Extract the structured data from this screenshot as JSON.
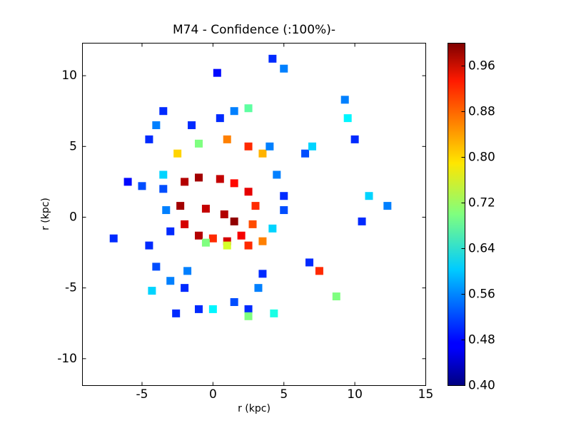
{
  "chart_data": {
    "type": "scatter",
    "title": "M74 - Confidence (:100%)-",
    "xlabel": "r (kpc)",
    "ylabel": "r (kpc)",
    "colormap": "jet",
    "x": [
      -2,
      -1,
      0.5,
      1.5,
      2.5,
      3,
      2.8,
      2,
      1,
      0,
      -1,
      -2,
      -2.3,
      0.8,
      1.5,
      -0.5,
      -3.5,
      -2.5,
      -1,
      1,
      2.5,
      3.5,
      4.5,
      5,
      5,
      4.2,
      3.5,
      2.5,
      1,
      -0.5,
      -3,
      -3.3,
      -3.5,
      -7,
      -6,
      -5,
      -4.5,
      -4,
      -3.5,
      -1.5,
      0.5,
      1.5,
      2.5,
      4,
      6.5,
      7,
      5,
      4.2,
      0.3,
      9.3,
      9.5,
      10,
      11,
      12.3,
      -4.5,
      -4,
      -3,
      -2,
      -4.3,
      -1,
      0,
      1.5,
      2.5,
      2.5,
      3.2,
      3.5,
      4.3,
      -2.6,
      7.5,
      8.7,
      6.8,
      10.5,
      -1.8
    ],
    "y": [
      2.5,
      2.8,
      2.7,
      2.4,
      1.8,
      0.8,
      -0.5,
      -1.3,
      -1.7,
      -1.5,
      -1.3,
      -0.5,
      0.8,
      0.2,
      -0.3,
      0.6,
      3,
      4.5,
      5.2,
      5.5,
      5,
      4.5,
      3,
      1.5,
      0.5,
      -0.8,
      -1.7,
      -2,
      -2,
      -1.8,
      -1,
      0.5,
      2,
      -1.5,
      2.5,
      2.2,
      5.5,
      6.5,
      7.5,
      6.5,
      7,
      7.5,
      7.7,
      5,
      4.5,
      5,
      10.5,
      11.2,
      10.2,
      8.3,
      7,
      5.5,
      1.5,
      0.8,
      -2,
      -3.5,
      -4.5,
      -5,
      -5.2,
      -6.5,
      -6.5,
      -6,
      -6.5,
      -7,
      -5,
      -4,
      -6.8,
      -6.8,
      -3.8,
      -5.6,
      -3.2,
      -0.3,
      -3.8
    ],
    "values": [
      0.97,
      0.98,
      0.96,
      0.92,
      0.94,
      0.9,
      0.88,
      0.93,
      0.95,
      0.9,
      0.97,
      0.95,
      0.98,
      0.97,
      0.99,
      0.96,
      0.6,
      0.8,
      0.7,
      0.85,
      0.9,
      0.82,
      0.55,
      0.5,
      0.52,
      0.6,
      0.85,
      0.9,
      0.75,
      0.7,
      0.5,
      0.55,
      0.52,
      0.5,
      0.48,
      0.52,
      0.5,
      0.55,
      0.5,
      0.5,
      0.5,
      0.55,
      0.68,
      0.55,
      0.52,
      0.6,
      0.55,
      0.5,
      0.48,
      0.55,
      0.62,
      0.5,
      0.6,
      0.55,
      0.5,
      0.52,
      0.55,
      0.5,
      0.6,
      0.5,
      0.62,
      0.52,
      0.5,
      0.7,
      0.55,
      0.5,
      0.64,
      0.5,
      0.9,
      0.7,
      0.5,
      0.5,
      0.55
    ],
    "xlim": [
      -9.2,
      15
    ],
    "ylim": [
      -11.9,
      12.3
    ],
    "xticks": [
      -5,
      0,
      5,
      10,
      15
    ],
    "yticks": [
      -10,
      -5,
      0,
      5,
      10
    ],
    "clim": [
      0.4,
      1.0
    ],
    "cticks": [
      {
        "value": 0.4,
        "label": "0.40"
      },
      {
        "value": 0.48,
        "label": "0.48"
      },
      {
        "value": 0.56,
        "label": "0.56"
      },
      {
        "value": 0.64,
        "label": "0.64"
      },
      {
        "value": 0.72,
        "label": "0.72"
      },
      {
        "value": 0.8,
        "label": "0.80"
      },
      {
        "value": 0.88,
        "label": "0.88"
      },
      {
        "value": 0.96,
        "label": "0.96"
      }
    ]
  }
}
